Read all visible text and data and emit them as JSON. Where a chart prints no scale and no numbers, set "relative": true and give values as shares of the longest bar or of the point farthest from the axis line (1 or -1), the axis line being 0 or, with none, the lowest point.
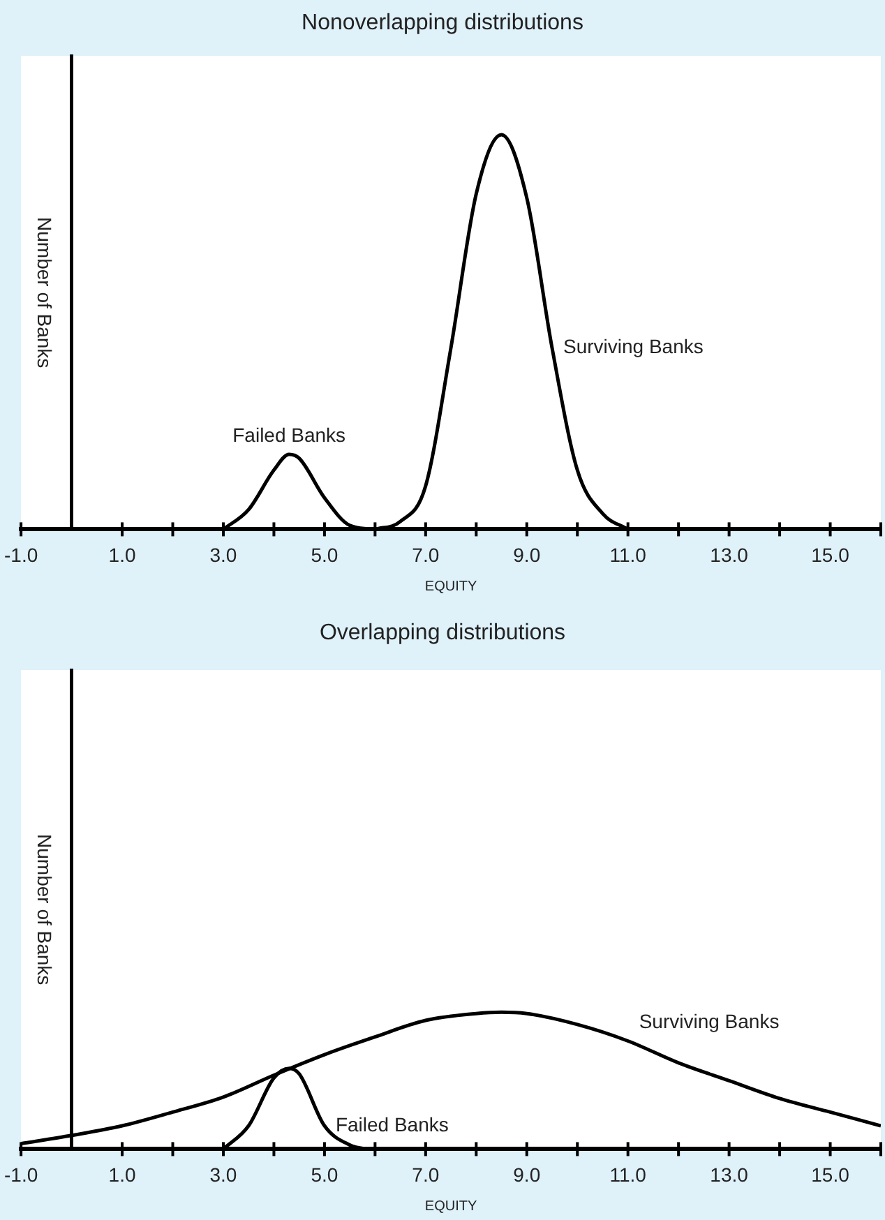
{
  "chart_data": [
    {
      "type": "line",
      "title": "Nonoverlapping distributions",
      "xlabel": "EQUITY",
      "ylabel": "Number of Banks",
      "relative": true,
      "grid": false,
      "legend": false,
      "marker": "none",
      "line_style": "solid",
      "xlim": [
        -1,
        16
      ],
      "xticks": [
        {
          "value": -1,
          "label": "-1.0"
        },
        {
          "value": 1,
          "label": "1.0"
        },
        {
          "value": 2,
          "label": null
        },
        {
          "value": 3,
          "label": "3.0"
        },
        {
          "value": 4,
          "label": null
        },
        {
          "value": 5,
          "label": "5.0"
        },
        {
          "value": 6,
          "label": null
        },
        {
          "value": 7,
          "label": "7.0"
        },
        {
          "value": 8,
          "label": null
        },
        {
          "value": 9,
          "label": "9.0"
        },
        {
          "value": 10,
          "label": null
        },
        {
          "value": 11,
          "label": "11.0"
        },
        {
          "value": 12,
          "label": null
        },
        {
          "value": 13,
          "label": "13.0"
        },
        {
          "value": 14,
          "label": null
        },
        {
          "value": 15,
          "label": "15.0"
        },
        {
          "value": 16,
          "label": null
        }
      ],
      "series": [
        {
          "name": "Failed Banks",
          "color": "#000000",
          "x": [
            3,
            3.5,
            4,
            4.3,
            4.5,
            5,
            5.5,
            6
          ],
          "values": [
            0,
            0.05,
            0.15,
            0.19,
            0.18,
            0.08,
            0.01,
            0
          ]
        },
        {
          "name": "Surviving Banks",
          "color": "#000000",
          "x": [
            6,
            6.5,
            7,
            7.5,
            8,
            8.5,
            9,
            9.5,
            10,
            10.5,
            11
          ],
          "values": [
            0,
            0.02,
            0.11,
            0.46,
            0.85,
            1,
            0.84,
            0.46,
            0.15,
            0.04,
            0
          ]
        }
      ]
    },
    {
      "type": "line",
      "title": "Overlapping distributions",
      "xlabel": "EQUITY",
      "ylabel": "Number of Banks",
      "relative": true,
      "grid": false,
      "legend": false,
      "marker": "none",
      "line_style": "solid",
      "xlim": [
        -1,
        16
      ],
      "xticks": [
        {
          "value": -1,
          "label": "-1.0"
        },
        {
          "value": 1,
          "label": "1.0"
        },
        {
          "value": 2,
          "label": null
        },
        {
          "value": 3,
          "label": "3.0"
        },
        {
          "value": 4,
          "label": null
        },
        {
          "value": 5,
          "label": "5.0"
        },
        {
          "value": 6,
          "label": null
        },
        {
          "value": 7,
          "label": "7.0"
        },
        {
          "value": 8,
          "label": null
        },
        {
          "value": 9,
          "label": "9.0"
        },
        {
          "value": 10,
          "label": null
        },
        {
          "value": 11,
          "label": "11.0"
        },
        {
          "value": 12,
          "label": null
        },
        {
          "value": 13,
          "label": "13.0"
        },
        {
          "value": 14,
          "label": null
        },
        {
          "value": 15,
          "label": "15.0"
        },
        {
          "value": 16,
          "label": null
        }
      ],
      "series": [
        {
          "name": "Failed Banks",
          "color": "#000000",
          "x": [
            3,
            3.5,
            4,
            4.3,
            4.5,
            5,
            5.5,
            5.8
          ],
          "values": [
            0,
            0.17,
            0.52,
            0.59,
            0.55,
            0.17,
            0.03,
            0
          ]
        },
        {
          "name": "Surviving Banks",
          "color": "#000000",
          "x": [
            -1,
            0,
            1,
            2,
            3,
            4,
            5,
            6,
            7,
            8,
            8.5,
            9,
            10,
            11,
            12,
            13,
            14,
            15,
            16
          ],
          "values": [
            0.04,
            0.1,
            0.17,
            0.27,
            0.38,
            0.54,
            0.69,
            0.82,
            0.94,
            0.99,
            1,
            0.99,
            0.91,
            0.79,
            0.63,
            0.5,
            0.37,
            0.27,
            0.17
          ]
        }
      ]
    }
  ]
}
